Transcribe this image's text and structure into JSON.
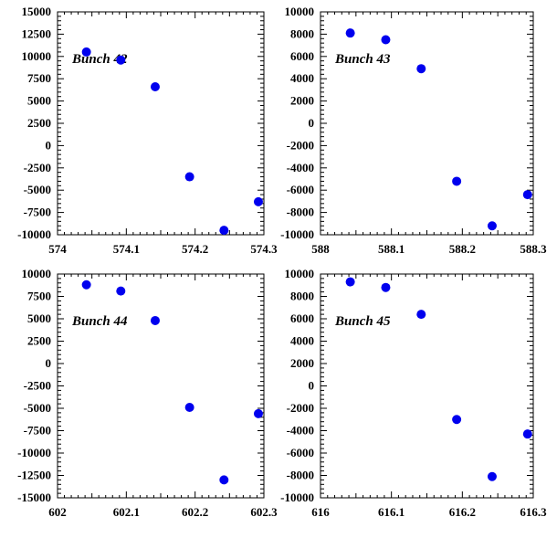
{
  "figure": {
    "title": "",
    "marker_color": "#0000ee",
    "frame_color": "#000000",
    "background": "#ffffff"
  },
  "chart_data": [
    {
      "type": "scatter",
      "title": "Bunch 42",
      "xlabel": "",
      "ylabel": "",
      "xlim": [
        574,
        574.3
      ],
      "ylim": [
        -10000,
        15000
      ],
      "xticks": [
        574,
        574.1,
        574.2,
        574.3
      ],
      "xtick_labels": [
        "574",
        "574.1",
        "574.2",
        "574.3"
      ],
      "yticks": [
        15000,
        12500,
        10000,
        7500,
        5000,
        2500,
        0,
        -2500,
        -5000,
        -7500,
        -10000
      ],
      "ytick_labels": [
        "15000",
        "12500",
        "10000",
        "7500",
        "5000",
        "2500",
        "0",
        "-2500",
        "-5000",
        "-7500",
        "-10000"
      ],
      "grid": false,
      "legend": "none",
      "x": [
        574.042,
        574.092,
        574.142,
        574.192,
        574.242,
        574.292
      ],
      "y": [
        10500,
        9600,
        6600,
        -3500,
        -9500,
        -6300
      ]
    },
    {
      "type": "scatter",
      "title": "Bunch 43",
      "xlabel": "",
      "ylabel": "",
      "xlim": [
        588,
        588.3
      ],
      "ylim": [
        -10000,
        10000
      ],
      "xticks": [
        588,
        588.1,
        588.2,
        588.3
      ],
      "xtick_labels": [
        "588",
        "588.1",
        "588.2",
        "588.3"
      ],
      "yticks": [
        10000,
        8000,
        6000,
        4000,
        2000,
        0,
        -2000,
        -4000,
        -6000,
        -8000,
        -10000
      ],
      "ytick_labels": [
        "10000",
        "8000",
        "6000",
        "4000",
        "2000",
        "0",
        "-2000",
        "-4000",
        "-6000",
        "-8000",
        "-10000"
      ],
      "grid": false,
      "legend": "none",
      "x": [
        588.042,
        588.092,
        588.142,
        588.192,
        588.242,
        588.292
      ],
      "y": [
        8100,
        7500,
        4900,
        -5200,
        -9200,
        -6400
      ]
    },
    {
      "type": "scatter",
      "title": "Bunch 44",
      "xlabel": "",
      "ylabel": "",
      "xlim": [
        602,
        602.3
      ],
      "ylim": [
        -15000,
        10000
      ],
      "xticks": [
        602,
        602.1,
        602.2,
        602.3
      ],
      "xtick_labels": [
        "602",
        "602.1",
        "602.2",
        "602.3"
      ],
      "yticks": [
        10000,
        7500,
        5000,
        2500,
        0,
        -2500,
        -5000,
        -7500,
        -10000,
        -12500,
        -15000
      ],
      "ytick_labels": [
        "10000",
        "7500",
        "5000",
        "2500",
        "0",
        "-2500",
        "-5000",
        "-7500",
        "-10000",
        "-12500",
        "-15000"
      ],
      "grid": false,
      "legend": "none",
      "x": [
        602.042,
        602.092,
        602.142,
        602.192,
        602.242,
        602.292
      ],
      "y": [
        8800,
        8100,
        4800,
        -4900,
        -13000,
        -5600
      ]
    },
    {
      "type": "scatter",
      "title": "Bunch 45",
      "xlabel": "",
      "ylabel": "",
      "xlim": [
        616,
        616.3
      ],
      "ylim": [
        -10000,
        10000
      ],
      "xticks": [
        616,
        616.1,
        616.2,
        616.3
      ],
      "xtick_labels": [
        "616",
        "616.1",
        "616.2",
        "616.3"
      ],
      "yticks": [
        10000,
        8000,
        6000,
        4000,
        2000,
        0,
        -2000,
        -4000,
        -6000,
        -8000,
        -10000
      ],
      "ytick_labels": [
        "10000",
        "8000",
        "6000",
        "4000",
        "2000",
        "0",
        "-2000",
        "-4000",
        "-6000",
        "-8000",
        "-10000"
      ],
      "grid": false,
      "legend": "none",
      "x": [
        616.042,
        616.092,
        616.142,
        616.192,
        616.242,
        616.292
      ],
      "y": [
        9300,
        8800,
        6400,
        -3000,
        -8100,
        -4300
      ]
    }
  ]
}
